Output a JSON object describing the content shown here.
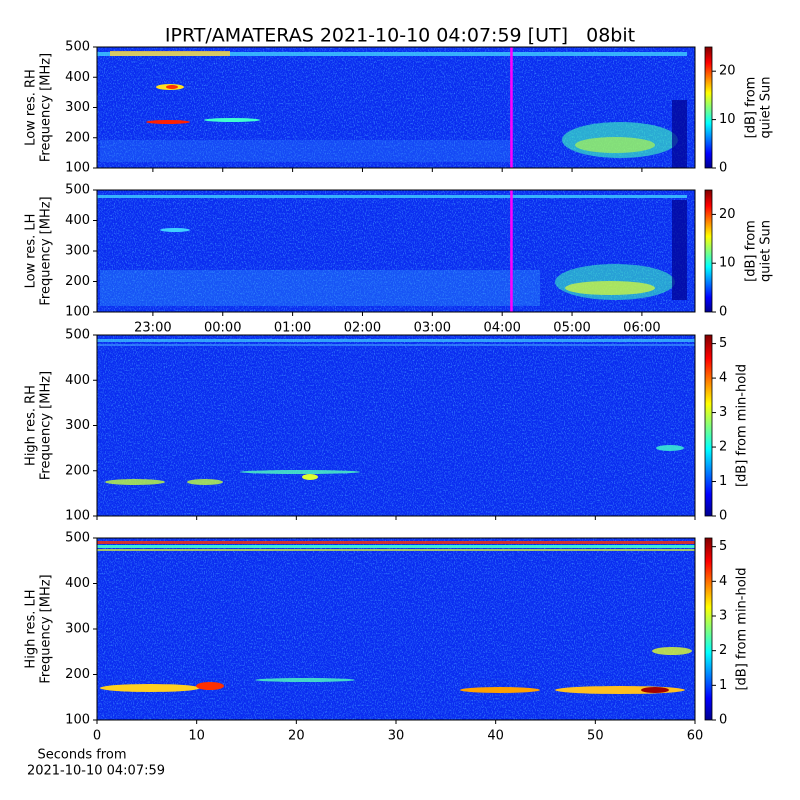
{
  "title": "IPRT/AMATERAS 2021-10-10 04:07:59 [UT]   08bit",
  "xlabel": [
    "Seconds from",
    "2021-10-10 04:07:59"
  ],
  "chart_data": [
    {
      "type": "heatmap",
      "ylabel": [
        "Low res. RH",
        "Frequency [MHz]"
      ],
      "xlim": [
        22.2,
        30.76
      ],
      "ylim": [
        100,
        500
      ],
      "yticks": [
        100,
        200,
        300,
        400,
        500
      ],
      "vline": {
        "x": 28.133,
        "color": "#ff00ff"
      },
      "colorbar_label": [
        "[dB] from",
        "quiet Sun"
      ],
      "clim": [
        0,
        25
      ],
      "cticks": [
        0,
        10,
        20
      ]
    },
    {
      "type": "heatmap",
      "ylabel": [
        "Low res. LH",
        "Frequency [MHz]"
      ],
      "xlim": [
        22.2,
        30.76
      ],
      "ylim": [
        100,
        500
      ],
      "yticks": [
        100,
        200,
        300,
        400,
        500
      ],
      "xticks": [
        {
          "value": 23,
          "label": "23:00"
        },
        {
          "value": 24,
          "label": "00:00"
        },
        {
          "value": 25,
          "label": "01:00"
        },
        {
          "value": 26,
          "label": "02:00"
        },
        {
          "value": 27,
          "label": "03:00"
        },
        {
          "value": 28,
          "label": "04:00"
        },
        {
          "value": 29,
          "label": "05:00"
        },
        {
          "value": 30,
          "label": "06:00"
        }
      ],
      "vline": {
        "x": 28.133,
        "color": "#ff00ff"
      },
      "colorbar_label": [
        "[dB] from",
        "quiet Sun"
      ],
      "clim": [
        0,
        25
      ],
      "cticks": [
        0,
        10,
        20
      ]
    },
    {
      "type": "heatmap",
      "ylabel": [
        "High res. RH",
        "Frequency [MHz]"
      ],
      "xlim": [
        0,
        60
      ],
      "ylim": [
        100,
        500
      ],
      "yticks": [
        100,
        200,
        300,
        400,
        500
      ],
      "colorbar_label": [
        "[dB] from min-hold"
      ],
      "clim": [
        0,
        5.25
      ],
      "cticks": [
        0,
        1,
        2,
        3,
        4,
        5
      ]
    },
    {
      "type": "heatmap",
      "ylabel": [
        "High res. LH",
        "Frequency [MHz]"
      ],
      "xlim": [
        0,
        60
      ],
      "ylim": [
        100,
        500
      ],
      "yticks": [
        100,
        200,
        300,
        400,
        500
      ],
      "xticks": [
        0,
        10,
        20,
        30,
        40,
        50,
        60
      ],
      "colorbar_label": [
        "[dB] from min-hold"
      ],
      "clim": [
        0,
        5.25
      ],
      "cticks": [
        0,
        1,
        2,
        3,
        4,
        5
      ]
    }
  ]
}
